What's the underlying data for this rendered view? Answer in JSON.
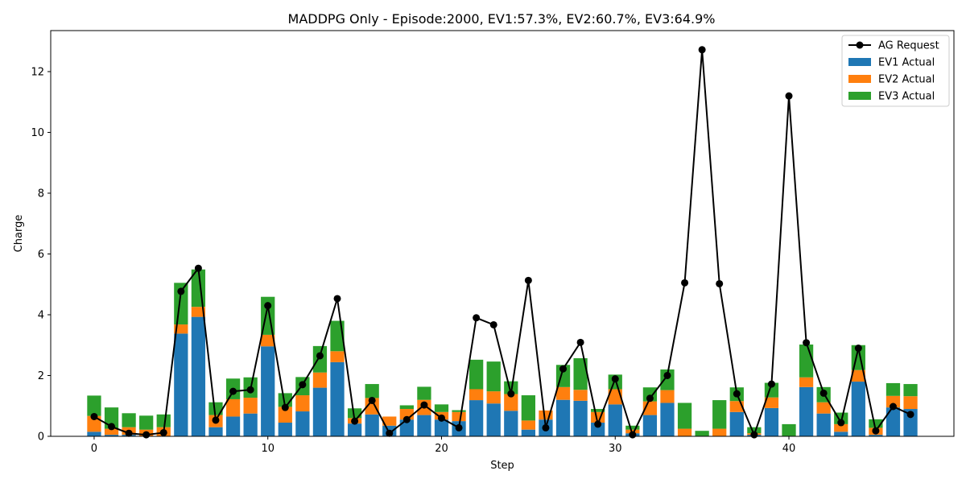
{
  "chart_data": {
    "type": "bar",
    "title": "MADDPG Only - Episode:2000, EV1:57.3%, EV2:60.7%, EV3:64.9%",
    "xlabel": "Step",
    "ylabel": "Charge",
    "xlim": [
      -2.5,
      49.5
    ],
    "ylim": [
      0,
      13.35
    ],
    "xticks": [
      0,
      10,
      20,
      30,
      40
    ],
    "yticks": [
      0,
      2,
      4,
      6,
      8,
      10,
      12
    ],
    "grid": false,
    "legend_position": "top-right",
    "x": [
      0,
      1,
      2,
      3,
      4,
      5,
      6,
      7,
      8,
      9,
      10,
      11,
      12,
      13,
      14,
      15,
      16,
      17,
      18,
      19,
      20,
      21,
      22,
      23,
      24,
      25,
      26,
      27,
      28,
      29,
      30,
      31,
      32,
      33,
      34,
      35,
      36,
      37,
      38,
      39,
      40,
      41,
      42,
      43,
      44,
      45,
      46,
      47
    ],
    "stacked_series": [
      {
        "name": "EV1 Actual",
        "color": "#1f77b4",
        "values": [
          0.15,
          0.05,
          0.05,
          0.0,
          0.0,
          3.38,
          3.93,
          0.3,
          0.65,
          0.75,
          2.96,
          0.45,
          0.82,
          1.6,
          2.44,
          0.42,
          0.72,
          0.35,
          0.55,
          0.7,
          0.55,
          0.5,
          1.19,
          1.08,
          0.84,
          0.22,
          0.55,
          1.2,
          1.17,
          0.45,
          1.05,
          0.1,
          0.7,
          1.1,
          0.0,
          0.0,
          0.0,
          0.8,
          0.05,
          0.93,
          0.0,
          1.62,
          0.75,
          0.15,
          1.8,
          0.05,
          0.95,
          0.9
        ]
      },
      {
        "name": "EV2 Actual",
        "color": "#ff7f0e",
        "values": [
          0.52,
          0.2,
          0.25,
          0.22,
          0.3,
          0.3,
          0.33,
          0.4,
          0.57,
          0.52,
          0.38,
          0.52,
          0.53,
          0.5,
          0.36,
          0.18,
          0.54,
          0.3,
          0.35,
          0.5,
          0.25,
          0.3,
          0.36,
          0.4,
          0.55,
          0.3,
          0.3,
          0.42,
          0.36,
          0.35,
          0.5,
          0.12,
          0.45,
          0.42,
          0.25,
          0.0,
          0.25,
          0.36,
          0.05,
          0.35,
          0.0,
          0.32,
          0.37,
          0.25,
          0.38,
          0.23,
          0.38,
          0.42
        ]
      },
      {
        "name": "EV3 Actual",
        "color": "#2ca02c",
        "values": [
          0.67,
          0.7,
          0.46,
          0.46,
          0.42,
          1.37,
          1.23,
          0.42,
          0.68,
          0.67,
          1.25,
          0.45,
          0.6,
          0.87,
          1.0,
          0.32,
          0.46,
          0.0,
          0.12,
          0.43,
          0.25,
          0.06,
          0.97,
          0.98,
          0.42,
          0.83,
          0.0,
          0.73,
          1.04,
          0.1,
          0.48,
          0.13,
          0.46,
          0.68,
          0.85,
          0.18,
          0.94,
          0.45,
          0.2,
          0.48,
          0.4,
          1.08,
          0.5,
          0.38,
          0.82,
          0.28,
          0.42,
          0.4
        ]
      }
    ],
    "line_series": {
      "name": "AG Request",
      "color": "#000000",
      "values": [
        0.65,
        0.32,
        0.1,
        0.05,
        0.12,
        4.77,
        5.53,
        0.53,
        1.48,
        1.53,
        4.3,
        0.95,
        1.7,
        2.65,
        4.53,
        0.5,
        1.18,
        0.1,
        0.55,
        1.03,
        0.6,
        0.28,
        3.9,
        3.67,
        1.4,
        5.13,
        0.28,
        2.22,
        3.09,
        0.4,
        1.89,
        0.05,
        1.25,
        2.0,
        5.05,
        12.72,
        5.02,
        1.4,
        0.05,
        1.72,
        11.2,
        3.08,
        1.42,
        0.45,
        2.9,
        0.18,
        0.98,
        0.72
      ]
    },
    "legend": [
      "AG Request",
      "EV1 Actual",
      "EV2 Actual",
      "EV3 Actual"
    ]
  }
}
